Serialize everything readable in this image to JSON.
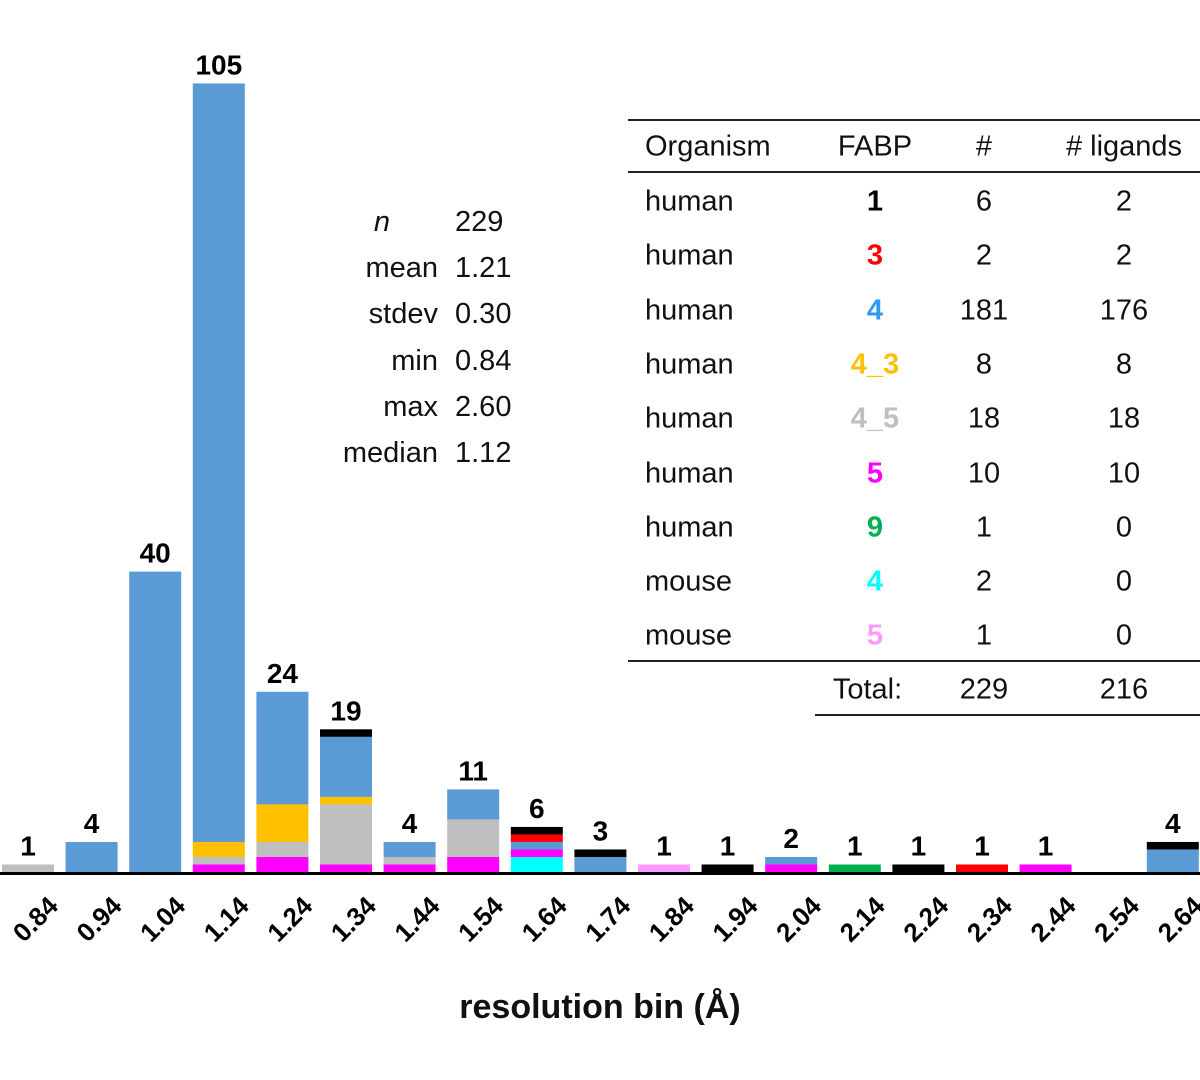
{
  "chart_data": {
    "type": "bar",
    "stacked": true,
    "xlabel": "resolution bin (Å)",
    "ylabel": "",
    "ylim": [
      0,
      105
    ],
    "categories": [
      "0.84",
      "0.94",
      "1.04",
      "1.14",
      "1.24",
      "1.34",
      "1.44",
      "1.54",
      "1.64",
      "1.74",
      "1.84",
      "1.94",
      "2.04",
      "2.14",
      "2.24",
      "2.34",
      "2.44",
      "2.54",
      "2.64"
    ],
    "totals": [
      1,
      4,
      40,
      105,
      24,
      19,
      4,
      11,
      6,
      3,
      1,
      1,
      2,
      1,
      1,
      1,
      1,
      0,
      4
    ],
    "total_labels": [
      "1",
      "4",
      "40",
      "105",
      "24",
      "19",
      "4",
      "11",
      "6",
      "3",
      "1",
      "1",
      "2",
      "1",
      "1",
      "1",
      "1",
      "",
      "4"
    ],
    "series": [
      {
        "organism": "mouse",
        "fabp": "4",
        "color": "#00ffff",
        "values": [
          0,
          0,
          0,
          0,
          0,
          0,
          0,
          0,
          2,
          0,
          0,
          0,
          0,
          0,
          0,
          0,
          0,
          0,
          0
        ]
      },
      {
        "organism": "human",
        "fabp": "5",
        "color": "#ff00ff",
        "values": [
          0,
          0,
          0,
          1,
          2,
          1,
          1,
          2,
          1,
          0,
          0,
          0,
          1,
          0,
          0,
          0,
          1,
          0,
          0
        ]
      },
      {
        "organism": "human",
        "fabp": "4_5",
        "color": "#bfbfbf",
        "values": [
          1,
          0,
          0,
          1,
          2,
          8,
          1,
          5,
          0,
          0,
          0,
          0,
          0,
          0,
          0,
          0,
          0,
          0,
          0
        ]
      },
      {
        "organism": "human",
        "fabp": "4_3",
        "color": "#ffc000",
        "values": [
          0,
          0,
          0,
          2,
          5,
          1,
          0,
          0,
          0,
          0,
          0,
          0,
          0,
          0,
          0,
          0,
          0,
          0,
          0
        ]
      },
      {
        "organism": "human",
        "fabp": "4",
        "color": "#5b9bd5",
        "values": [
          0,
          4,
          40,
          101,
          15,
          8,
          2,
          4,
          1,
          2,
          0,
          0,
          1,
          0,
          0,
          0,
          0,
          0,
          3
        ]
      },
      {
        "organism": "human",
        "fabp": "3",
        "color": "#ff0000",
        "values": [
          0,
          0,
          0,
          0,
          0,
          0,
          0,
          0,
          1,
          0,
          0,
          0,
          0,
          0,
          0,
          1,
          0,
          0,
          0
        ]
      },
      {
        "organism": "human",
        "fabp": "1",
        "color": "#000000",
        "values": [
          0,
          0,
          0,
          0,
          0,
          1,
          0,
          0,
          1,
          1,
          0,
          1,
          0,
          0,
          1,
          0,
          0,
          0,
          1
        ]
      },
      {
        "organism": "mouse",
        "fabp": "5",
        "color": "#ff99ff",
        "values": [
          0,
          0,
          0,
          0,
          0,
          0,
          0,
          0,
          0,
          0,
          1,
          0,
          0,
          0,
          0,
          0,
          0,
          0,
          0
        ]
      },
      {
        "organism": "human",
        "fabp": "9",
        "color": "#00b050",
        "values": [
          0,
          0,
          0,
          0,
          0,
          0,
          0,
          0,
          0,
          0,
          0,
          0,
          0,
          1,
          0,
          0,
          0,
          0,
          0
        ]
      }
    ],
    "grid": false
  },
  "stats": [
    {
      "label": "n",
      "value": "229",
      "italic": true
    },
    {
      "label": "mean",
      "value": "1.21"
    },
    {
      "label": "stdev",
      "value": "0.30"
    },
    {
      "label": "min",
      "value": "0.84"
    },
    {
      "label": "max",
      "value": "2.60"
    },
    {
      "label": "median",
      "value": "1.12"
    }
  ],
  "table": {
    "headers": [
      "Organism",
      "FABP",
      "#",
      "# ligands"
    ],
    "rows": [
      {
        "organism": "human",
        "fabp": "1",
        "color": "#000000",
        "n": "6",
        "ligands": "2"
      },
      {
        "organism": "human",
        "fabp": "3",
        "color": "#ff0000",
        "n": "2",
        "ligands": "2"
      },
      {
        "organism": "human",
        "fabp": "4",
        "color": "#2f9bf0",
        "n": "181",
        "ligands": "176"
      },
      {
        "organism": "human",
        "fabp": "4_3",
        "color": "#ffc000",
        "n": "8",
        "ligands": "8"
      },
      {
        "organism": "human",
        "fabp": "4_5",
        "color": "#bfbfbf",
        "n": "18",
        "ligands": "18"
      },
      {
        "organism": "human",
        "fabp": "5",
        "color": "#ff00ff",
        "n": "10",
        "ligands": "10"
      },
      {
        "organism": "human",
        "fabp": "9",
        "color": "#00b050",
        "n": "1",
        "ligands": "0"
      },
      {
        "organism": "mouse",
        "fabp": "4",
        "color": "#00ffff",
        "n": "2",
        "ligands": "0"
      },
      {
        "organism": "mouse",
        "fabp": "5",
        "color": "#ff99ff",
        "n": "1",
        "ligands": "0"
      }
    ],
    "total_label": "Total:",
    "total_n": "229",
    "total_ligands": "216"
  }
}
